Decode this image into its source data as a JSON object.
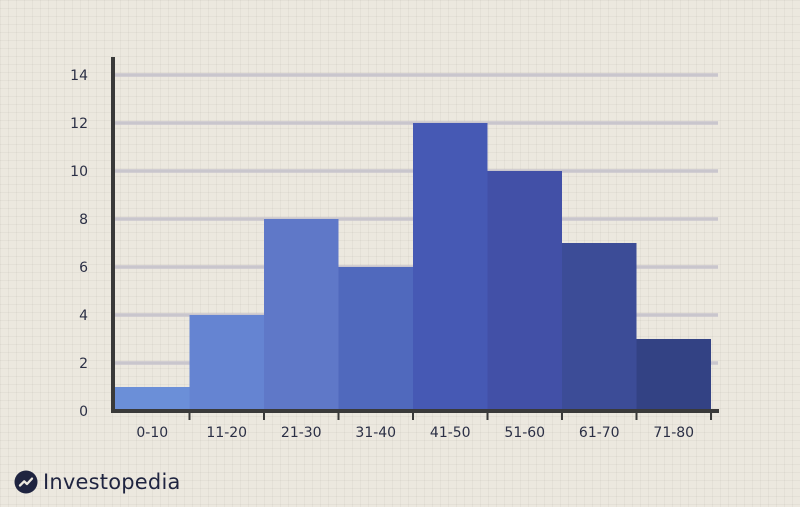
{
  "chart_data": {
    "type": "bar",
    "categories": [
      "0-10",
      "11-20",
      "21-30",
      "31-40",
      "41-50",
      "51-60",
      "61-70",
      "71-80"
    ],
    "values": [
      1,
      4,
      8,
      6,
      12,
      10,
      7,
      3
    ],
    "ylim": [
      0,
      14
    ],
    "yticks": [
      0,
      2,
      4,
      6,
      8,
      10,
      12,
      14
    ],
    "grid": true,
    "colors": [
      "#6b8fd8",
      "#6584d2",
      "#5f78c8",
      "#5069bd",
      "#4659b4",
      "#4250a7",
      "#3c4c97",
      "#334284"
    ]
  },
  "brand": {
    "name": "Investopedia",
    "logo_icon": "investopedia-logo-icon"
  }
}
